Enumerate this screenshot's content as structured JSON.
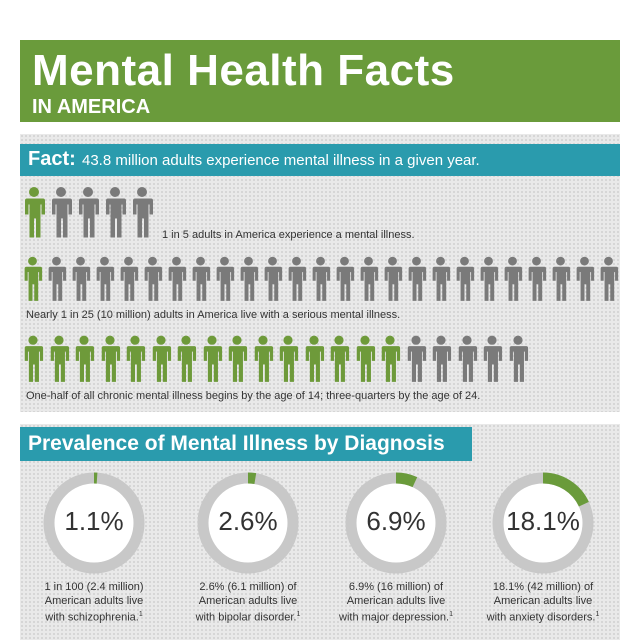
{
  "title": {
    "main": "Mental Health Facts",
    "sub": "IN AMERICA"
  },
  "fact": {
    "label": "Fact:",
    "text": "43.8 million adults experience mental illness in a given year."
  },
  "rows": [
    {
      "caption": "1 in 5 adults in America experience a mental illness.",
      "total": 5,
      "green": 1
    },
    {
      "caption": "Nearly 1 in 25 (10 million) adults in America live with a serious mental illness.",
      "total": 25,
      "green": 1
    },
    {
      "caption": "One-half of all chronic mental illness begins by the age of 14; three-quarters by the age of 24.",
      "total": 20,
      "green": 15
    }
  ],
  "prevalence": {
    "title": "Prevalence of Mental Illness by Diagnosis",
    "items": [
      {
        "value": "1.1%",
        "fraction": 0.011,
        "line1": "1 in 100 (2.4 million)",
        "line2": "American adults live",
        "line3": "with schizophrenia.",
        "note": "1"
      },
      {
        "value": "2.6%",
        "fraction": 0.026,
        "line1": "2.6% (6.1 million) of",
        "line2": "American adults live",
        "line3": "with bipolar disorder.",
        "note": "1"
      },
      {
        "value": "6.9%",
        "fraction": 0.069,
        "line1": "6.9% (16 million) of",
        "line2": "American adults live",
        "line3": "with major depression.",
        "note": "1"
      },
      {
        "value": "18.1%",
        "fraction": 0.181,
        "line1": "18.1% (42 million) of",
        "line2": "American adults live",
        "line3": "with anxiety disorders.",
        "note": "1"
      }
    ]
  },
  "colors": {
    "green": "#6a9b3b",
    "people_green": "#6e9a3a",
    "people_gray": "#7a7a7a",
    "teal": "#2a9bad",
    "ring_gray": "#c8c8c8"
  }
}
